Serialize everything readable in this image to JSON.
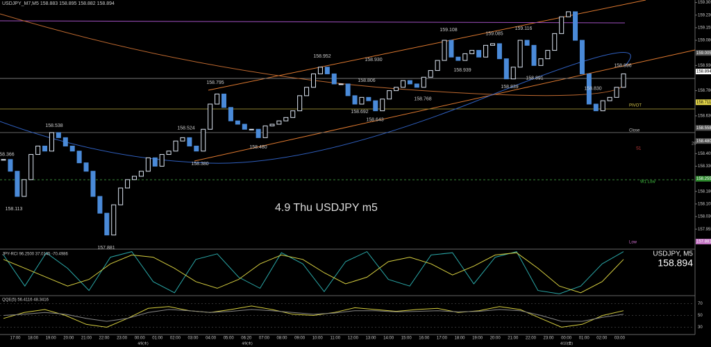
{
  "header": "USDJPY_M7,M5 158.883 158.895 158.882 158.894",
  "chart_data": [
    {
      "type": "candlestick",
      "title": "4.9 Thu USDJPY m5",
      "symbol_label": "USDJPY, M5",
      "current": 158.894,
      "color_up": "#dfe8f5",
      "color_down": "#4a8ad8",
      "values": [
        158.37,
        158.3,
        158.15,
        158.25,
        158.4,
        158.45,
        158.42,
        158.53,
        158.5,
        158.45,
        158.42,
        158.35,
        158.3,
        158.15,
        158.05,
        157.92,
        158.1,
        158.2,
        158.25,
        158.27,
        158.3,
        158.38,
        158.33,
        158.4,
        158.42,
        158.48,
        158.5,
        158.45,
        158.42,
        158.55,
        158.7,
        158.76,
        158.68,
        158.6,
        158.58,
        158.55,
        158.55,
        158.5,
        158.57,
        158.58,
        158.6,
        158.62,
        158.66,
        158.75,
        158.8,
        158.88,
        158.92,
        158.88,
        158.82,
        158.82,
        158.75,
        158.7,
        158.74,
        158.72,
        158.66,
        158.73,
        158.78,
        158.8,
        158.84,
        158.82,
        158.8,
        158.86,
        158.9,
        158.96,
        159.08,
        158.98,
        158.96,
        159.0,
        159.02,
        158.98,
        159.05,
        159.06,
        158.97,
        158.85,
        158.92,
        159.08,
        159.05,
        158.93,
        158.97,
        159.02,
        159.12,
        159.22,
        159.25,
        159.08,
        158.88,
        158.7,
        158.66,
        158.72,
        158.74,
        158.8,
        158.88
      ],
      "ylim": [
        157.84,
        159.32
      ],
      "yticks": [
        159.305,
        {
          "value": 159.23,
          "label": "159.230"
        },
        159.155,
        {
          "value": 159.08,
          "label": "159.080"
        },
        {
          "value": 158.93,
          "label": "158.930"
        },
        {
          "value": 158.78,
          "label": "158.780"
        },
        {
          "value": 158.63,
          "label": "158.630"
        },
        158.405,
        {
          "value": 158.33,
          "label": "158.330"
        },
        {
          "value": 158.18,
          "label": "158.180"
        },
        158.105,
        {
          "value": 158.03,
          "label": "158.030"
        },
        157.955
      ],
      "price_labels": [
        158.366,
        158.113,
        158.538,
        157.881,
        158.524,
        {
          "value": 158.38,
          "label": "158.380"
        },
        158.795,
        {
          "value": 158.48,
          "label": "158.480"
        },
        158.952,
        {
          "value": 158.93,
          "label": "158.930"
        },
        158.806,
        158.692,
        158.643,
        158.768,
        159.108,
        158.939,
        159.085,
        158.839,
        159.116,
        158.891,
        159.298,
        {
          "value": 158.83,
          "label": "158.830"
        },
        158.896
      ],
      "price_boxes": [
        159.005,
        158.894,
        158.711,
        158.558,
        {
          "value": 158.48,
          "label": "158.480"
        },
        158.255,
        157.881
      ],
      "price_box_colors": [
        "#555555",
        "#ffffff",
        "#e6d84a",
        "#555555",
        "#555555",
        "#2e8b2e",
        "#c070c0"
      ],
      "level_labels": [
        "PIVOT",
        "Close",
        "S1",
        "20",
        "W1 Low",
        "Low"
      ],
      "level_colors": [
        "#d8c84a",
        "#cccccc",
        "#d04040",
        "#aaaaaa",
        "#40c040",
        "#d070d0"
      ],
      "x_labels": [
        "17:00",
        "18:00",
        "19:00",
        "20:00",
        "21:00",
        "22:00",
        "23:00",
        "00:00",
        "01:00",
        "02:00",
        "03:00",
        "04:00",
        "05:00",
        "06:20",
        "07:00",
        "08:00",
        "09:00",
        "10:00",
        "11:00",
        "12:00",
        "13:00",
        "14:00",
        "15:00",
        "16:00",
        "17:00",
        "18:00",
        "19:00",
        "20:00",
        "21:00",
        "22:00",
        "23:00",
        "00:00",
        "01:00",
        "02:00",
        "03:00"
      ],
      "date_labels": [
        "4/9(木)",
        "4/9(木)",
        "4/10(金)"
      ]
    },
    {
      "type": "line",
      "title": "JPY-RCI 96.2500 37.0145 -70.4986",
      "ylim": [
        -100,
        100
      ],
      "series": [
        {
          "color": "#2aa8a8",
          "values": [
            80,
            -60,
            90,
            20,
            -80,
            70,
            95,
            -40,
            -90,
            60,
            85,
            -20,
            -70,
            90,
            40,
            -85,
            50,
            95,
            -30,
            -60,
            80,
            90,
            -50,
            70,
            95,
            -80,
            -95,
            -60,
            40,
            95
          ]
        },
        {
          "color": "#d8d040",
          "values": [
            60,
            20,
            -20,
            -60,
            -30,
            40,
            80,
            70,
            20,
            -40,
            -70,
            -30,
            40,
            80,
            60,
            0,
            -50,
            -20,
            50,
            70,
            40,
            -10,
            30,
            80,
            90,
            20,
            -60,
            -90,
            -40,
            60
          ]
        }
      ]
    },
    {
      "type": "line",
      "title": "QQE(5) 56.4116 48.3416",
      "ylim": [
        20,
        80
      ],
      "yticks": [
        70,
        50,
        30
      ],
      "series": [
        {
          "color": "#d8d040",
          "values": [
            45,
            55,
            60,
            50,
            35,
            30,
            45,
            62,
            65,
            58,
            55,
            60,
            66,
            60,
            52,
            50,
            55,
            63,
            60,
            57,
            60,
            62,
            55,
            58,
            65,
            60,
            45,
            30,
            35,
            50,
            58
          ]
        },
        {
          "color": "#888888",
          "values": [
            50,
            52,
            55,
            52,
            45,
            40,
            45,
            55,
            60,
            58,
            55,
            57,
            60,
            58,
            55,
            52,
            54,
            58,
            58,
            56,
            57,
            58,
            56,
            57,
            60,
            58,
            50,
            40,
            40,
            47,
            52
          ]
        }
      ]
    }
  ]
}
